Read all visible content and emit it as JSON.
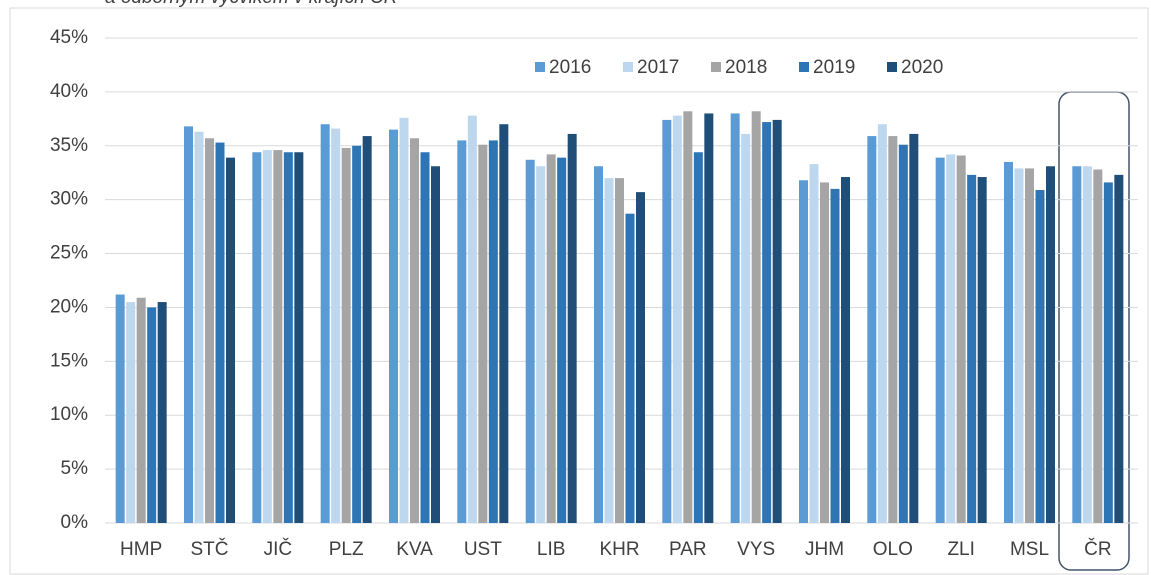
{
  "chart_data": {
    "type": "bar",
    "title": "a odborným výcvikem v krajích ČR",
    "categories": [
      "HMP",
      "STČ",
      "JIČ",
      "PLZ",
      "KVA",
      "UST",
      "LIB",
      "KHR",
      "PAR",
      "VYS",
      "JHM",
      "OLO",
      "ZLI",
      "MSL",
      "ČR"
    ],
    "series": [
      {
        "name": "2016",
        "color": "#5b9bd5",
        "values": [
          21.2,
          36.8,
          34.4,
          37.0,
          36.5,
          35.5,
          33.7,
          33.1,
          37.4,
          38.0,
          31.8,
          35.9,
          33.9,
          33.5,
          33.1
        ]
      },
      {
        "name": "2017",
        "color": "#bdd7ee",
        "values": [
          20.5,
          36.3,
          34.6,
          36.6,
          37.6,
          37.8,
          33.1,
          32.0,
          37.8,
          36.1,
          33.3,
          37.0,
          34.2,
          32.9,
          33.1
        ]
      },
      {
        "name": "2018",
        "color": "#a5a5a5",
        "values": [
          20.9,
          35.7,
          34.6,
          34.8,
          35.7,
          35.1,
          34.2,
          32.0,
          38.2,
          38.2,
          31.6,
          35.9,
          34.1,
          32.9,
          32.8
        ]
      },
      {
        "name": "2019",
        "color": "#2e75b6",
        "values": [
          20.0,
          35.3,
          34.4,
          35.0,
          34.4,
          35.5,
          33.9,
          28.7,
          34.4,
          37.2,
          31.0,
          35.1,
          32.3,
          30.9,
          31.6
        ]
      },
      {
        "name": "2020",
        "color": "#1f4e79",
        "values": [
          20.5,
          33.9,
          34.4,
          35.9,
          33.1,
          37.0,
          36.1,
          30.7,
          38.0,
          37.4,
          32.1,
          36.1,
          32.1,
          33.1,
          32.3
        ]
      }
    ],
    "ylim": [
      0,
      45
    ],
    "yticks": [
      {
        "value": 0,
        "label": "0%"
      },
      {
        "value": 5,
        "label": "5%"
      },
      {
        "value": 10,
        "label": "10%"
      },
      {
        "value": 15,
        "label": "15%"
      },
      {
        "value": 20,
        "label": "20%"
      },
      {
        "value": 25,
        "label": "25%"
      },
      {
        "value": 30,
        "label": "30%"
      },
      {
        "value": 35,
        "label": "35%"
      },
      {
        "value": 40,
        "label": "40%"
      },
      {
        "value": 45,
        "label": "45%"
      }
    ],
    "grid": true,
    "legend": "top-right"
  }
}
